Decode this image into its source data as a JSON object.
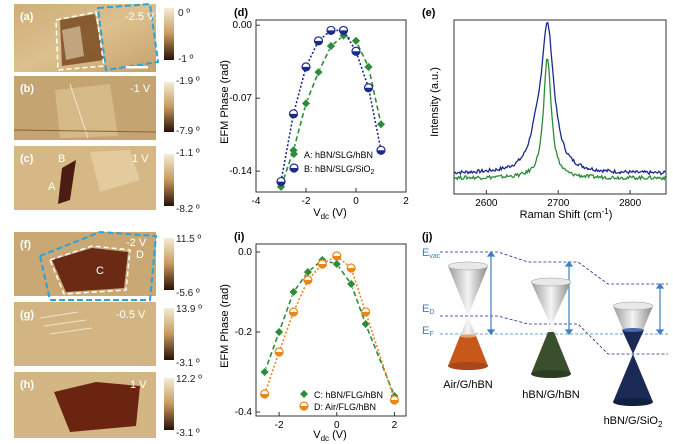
{
  "colors": {
    "green": "#2e8b3a",
    "green_dark": "#1f6e2a",
    "navy": "#1c2a8c",
    "orange": "#e8871c",
    "cyan_dash": "#29a3d9",
    "blue_line": "#3b7fc4",
    "afm_light": "#d8b987",
    "afm_mid": "#b99660",
    "afm_dark": "#5a2a18"
  },
  "afm": [
    {
      "label": "(a)",
      "voltage": "-2.5 V",
      "cb_top": "0 º",
      "cb_bottom": "-1 º"
    },
    {
      "label": "(b)",
      "voltage": "-1 V",
      "cb_top": "-1.9 º",
      "cb_bottom": "-7.9 º"
    },
    {
      "label": "(c)",
      "voltage": "1 V",
      "cb_top": "-1.1 º",
      "cb_bottom": "-8.2 º",
      "markers": [
        "A",
        "B"
      ]
    },
    {
      "label": "(f)",
      "voltage": "-2 V",
      "cb_top": "11.5 º",
      "cb_bottom": "-5.6 º",
      "markers": [
        "C",
        "D"
      ]
    },
    {
      "label": "(g)",
      "voltage": "-0.5 V",
      "cb_top": "13.9 º",
      "cb_bottom": "-3.1 º"
    },
    {
      "label": "(h)",
      "voltage": "1 V",
      "cb_top": "12.2 º",
      "cb_bottom": "-3.1 º"
    }
  ],
  "chart_data": [
    {
      "panel": "(d)",
      "type": "scatter",
      "xlabel": "V",
      "xlabel_sub": "dc",
      "xlabel_unit": " (V)",
      "ylabel": "EFM Phase (rad)",
      "xlim": [
        -4,
        2
      ],
      "ylim": [
        -0.16,
        0.005
      ],
      "xticks": [
        "-4",
        "-2",
        "0",
        "2"
      ],
      "xtick_values": [
        -4,
        -2,
        0,
        2
      ],
      "yticks": [
        "0.00",
        "-0.07",
        "-0.14"
      ],
      "ytick_values": [
        0.0,
        -0.07,
        -0.14
      ],
      "series": [
        {
          "name": "A: hBN/SLG/hBN",
          "name_sub": "",
          "color": "green",
          "marker": "diamond",
          "x": [
            -3,
            -2.5,
            -2,
            -1.5,
            -1,
            -0.5,
            0,
            0.5,
            1
          ],
          "y": [
            -0.155,
            -0.12,
            -0.075,
            -0.045,
            -0.02,
            -0.01,
            -0.015,
            -0.04,
            -0.095
          ]
        },
        {
          "name": "B: hBN/SLG/SiO",
          "name_sub": "2",
          "color": "navy",
          "marker": "circle",
          "x": [
            -3,
            -2.5,
            -2,
            -1.5,
            -1,
            -0.5,
            0,
            0.5,
            1
          ],
          "y": [
            -0.15,
            -0.085,
            -0.04,
            -0.015,
            -0.005,
            -0.005,
            -0.025,
            -0.06,
            -0.12
          ]
        }
      ]
    },
    {
      "panel": "(e)",
      "type": "line",
      "xlabel": "Raman Shift (cm",
      "xlabel_sup": "-1",
      "xlabel_tail": ")",
      "ylabel": "Intensity (a.u.)",
      "xlim": [
        2555,
        2850
      ],
      "xticks": [
        "2600",
        "2700",
        "2800"
      ],
      "xtick_values": [
        2600,
        2700,
        2800
      ],
      "series": [
        {
          "name": "navy",
          "color": "navy",
          "center": 2685,
          "width": 22,
          "height": 1.0,
          "base": 0.03,
          "shoulder": 2668
        },
        {
          "name": "green",
          "color": "green",
          "center": 2685,
          "width": 13,
          "height": 0.82,
          "base": 0.0,
          "shoulder": 0
        }
      ]
    },
    {
      "panel": "(i)",
      "type": "scatter",
      "xlabel": "V",
      "xlabel_sub": "dc",
      "xlabel_unit": " (V)",
      "ylabel": "EFM Phase (rad)",
      "xlim": [
        -2.8,
        2.4
      ],
      "ylim": [
        -0.41,
        0.02
      ],
      "xticks": [
        "-2",
        "0",
        "2"
      ],
      "xtick_values": [
        -2,
        0,
        2
      ],
      "yticks": [
        "0.0",
        "-0.2",
        "-0.4"
      ],
      "ytick_values": [
        0.0,
        -0.2,
        -0.4
      ],
      "series": [
        {
          "name": "C: hBN/FLG/hBN",
          "color": "green",
          "marker": "diamond",
          "x": [
            -2.5,
            -2,
            -1.5,
            -1,
            -0.5,
            0,
            0.5,
            1,
            2
          ],
          "y": [
            -0.3,
            -0.2,
            -0.1,
            -0.05,
            -0.02,
            -0.03,
            -0.08,
            -0.18,
            -0.36
          ]
        },
        {
          "name": "D: Air/FLG/hBN",
          "color": "orange",
          "marker": "circle",
          "x": [
            -2.5,
            -2,
            -1.5,
            -1,
            -0.5,
            0,
            0.5,
            1,
            2
          ],
          "y": [
            -0.355,
            -0.25,
            -0.15,
            -0.07,
            -0.03,
            -0.01,
            -0.04,
            -0.15,
            -0.37
          ]
        }
      ]
    }
  ],
  "panel_j": {
    "label": "(j)",
    "e_vac": "E",
    "e_vac_sub": "vac",
    "e_d": "E",
    "e_d_sub": "D",
    "e_f": "E",
    "e_f_sub": "F",
    "cones": [
      {
        "label": "Air/G/hBN",
        "sub": "",
        "color": "#c8581a"
      },
      {
        "label": "hBN/G/hBN",
        "sub": "",
        "color": "#3a4f2c"
      },
      {
        "label": "hBN/G/SiO",
        "sub": "2",
        "color": "#1b2a55"
      }
    ]
  },
  "panel_labels": {
    "d": "(d)",
    "e": "(e)",
    "i": "(i)"
  }
}
